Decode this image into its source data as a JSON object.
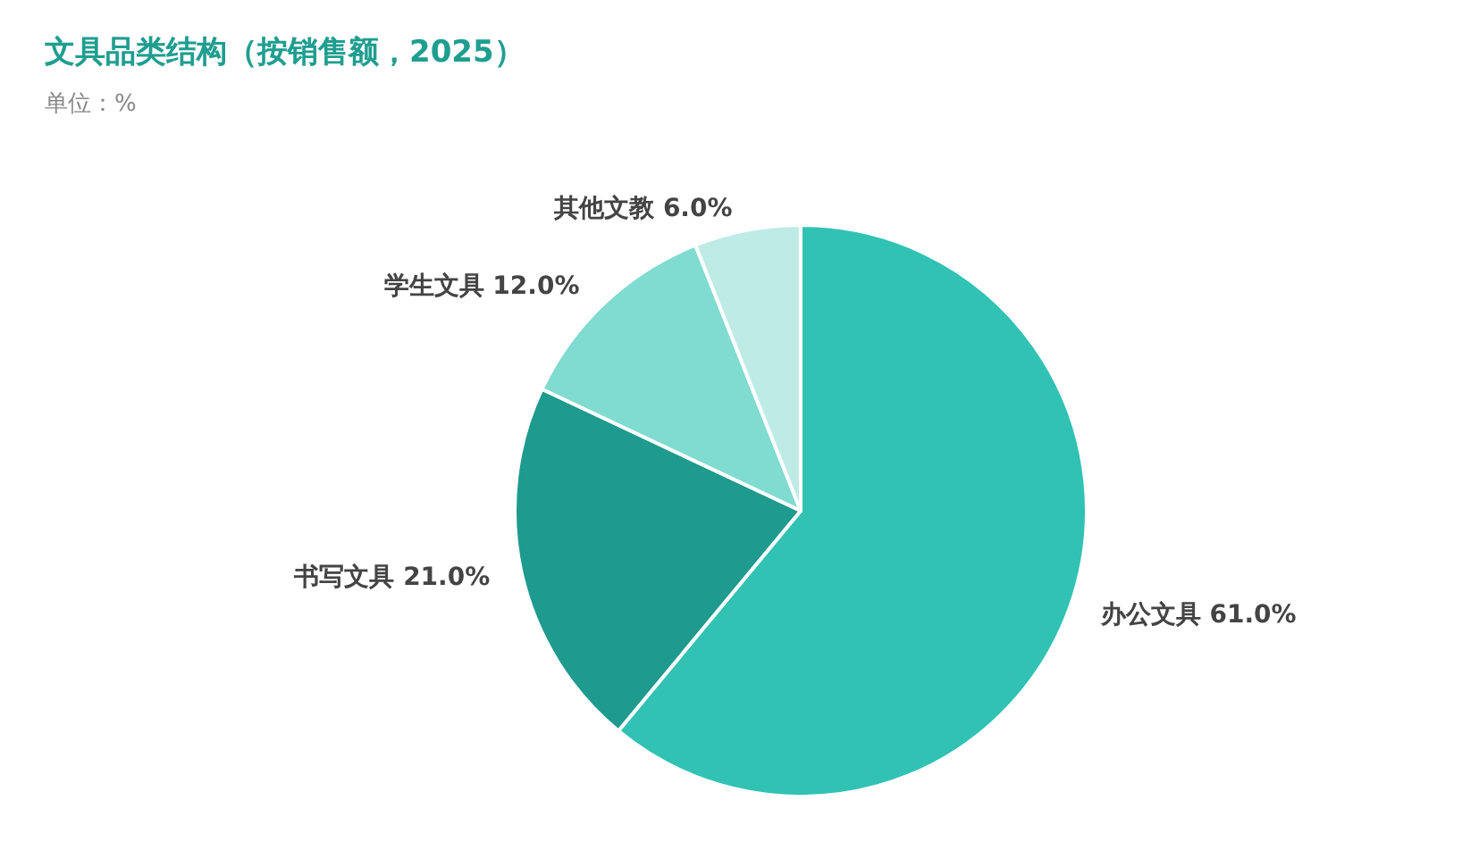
{
  "chart_data": {
    "type": "pie",
    "title": "文具品类结构（按销售额，2025）",
    "subtitle": "单位：%",
    "categories": [
      "办公文具",
      "书写文具",
      "学生文具",
      "其他文教"
    ],
    "values": [
      61.0,
      21.0,
      12.0,
      6.0
    ],
    "value_labels": [
      "61.0%",
      "21.0%",
      "12.0%",
      "6.0%"
    ],
    "colors": [
      "#31c2b4",
      "#1e9a8e",
      "#80dbd0",
      "#bfebe7"
    ],
    "legend": false
  }
}
